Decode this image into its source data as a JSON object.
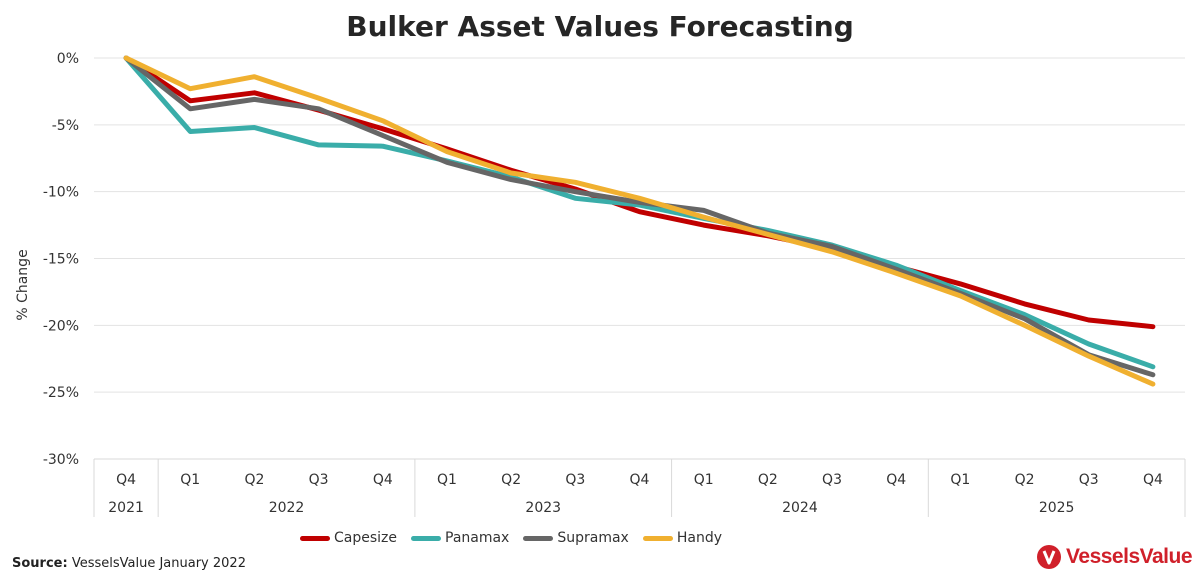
{
  "chart_data": {
    "type": "line",
    "title": "Bulker Asset Values Forecasting",
    "ylabel": "% Change",
    "xlabel": "",
    "ylim": [
      -30,
      0
    ],
    "yticks": [
      0,
      -5,
      -10,
      -15,
      -20,
      -25,
      -30
    ],
    "ytick_labels": [
      "0%",
      "-5%",
      "-10%",
      "-15%",
      "-20%",
      "-25%",
      "-30%"
    ],
    "categories": [
      "Q4",
      "Q1",
      "Q2",
      "Q3",
      "Q4",
      "Q1",
      "Q2",
      "Q3",
      "Q4",
      "Q1",
      "Q2",
      "Q3",
      "Q4",
      "Q1",
      "Q2",
      "Q3",
      "Q4"
    ],
    "year_groups": [
      {
        "label": "2021",
        "count": 1
      },
      {
        "label": "2022",
        "count": 4
      },
      {
        "label": "2023",
        "count": 4
      },
      {
        "label": "2024",
        "count": 4
      },
      {
        "label": "2025",
        "count": 4
      }
    ],
    "series": [
      {
        "name": "Capesize",
        "color": "#c00000",
        "values": [
          0,
          -3.2,
          -2.6,
          -3.9,
          -5.3,
          -6.8,
          -8.4,
          -9.8,
          -11.5,
          -12.5,
          -13.3,
          -14.3,
          -15.6,
          -16.9,
          -18.4,
          -19.6,
          -20.1
        ]
      },
      {
        "name": "Panamax",
        "color": "#3aada9",
        "values": [
          0,
          -5.5,
          -5.2,
          -6.5,
          -6.6,
          -7.7,
          -8.9,
          -10.5,
          -11.0,
          -12.0,
          -12.9,
          -14.0,
          -15.5,
          -17.4,
          -19.2,
          -21.4,
          -23.1
        ]
      },
      {
        "name": "Supramax",
        "color": "#666666",
        "values": [
          0,
          -3.8,
          -3.1,
          -3.8,
          -5.8,
          -7.8,
          -9.1,
          -10.0,
          -10.8,
          -11.4,
          -13.1,
          -14.1,
          -15.8,
          -17.6,
          -19.5,
          -22.2,
          -23.7
        ]
      },
      {
        "name": "Handy",
        "color": "#f0b030",
        "values": [
          0,
          -2.3,
          -1.4,
          -3.0,
          -4.7,
          -7.0,
          -8.6,
          -9.3,
          -10.5,
          -11.9,
          -13.2,
          -14.5,
          -16.1,
          -17.8,
          -20.0,
          -22.3,
          -24.4
        ]
      }
    ],
    "legend_position": "bottom"
  },
  "source": {
    "label": "Source:",
    "text": "VesselsValue January 2022"
  },
  "logo": {
    "text": "VesselsValue"
  }
}
